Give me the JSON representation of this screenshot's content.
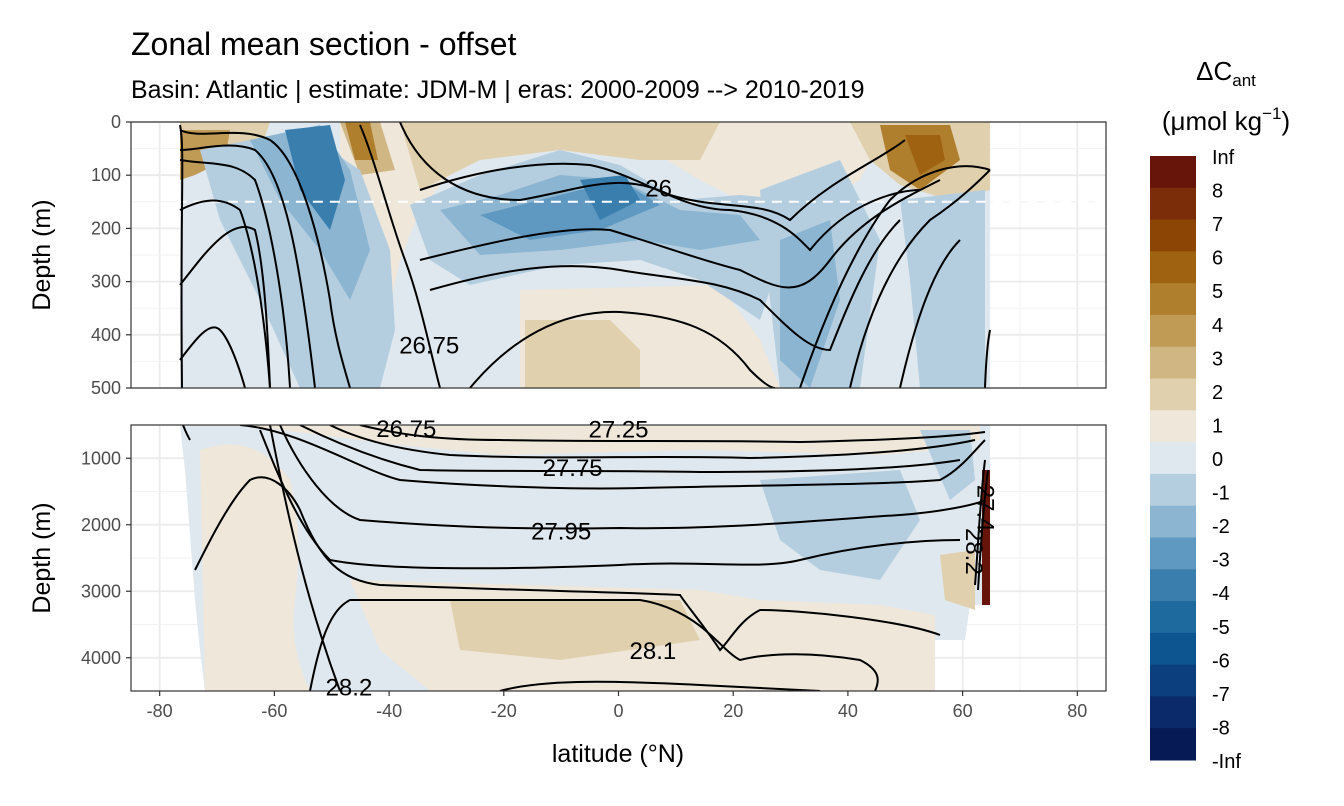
{
  "chart_data": {
    "type": "contour",
    "title": "Zonal mean section - offset",
    "subtitle": "Basin: Atlantic | estimate: JDM-M | eras: 2000-2009 --> 2010-2019",
    "xlabel": "latitude (°N)",
    "ylabel_top": "Depth (m)",
    "ylabel_bottom": "Depth (m)",
    "xlim": [
      -85,
      85
    ],
    "x_ticks": [
      -80,
      -60,
      -40,
      -20,
      0,
      20,
      40,
      60,
      80
    ],
    "x_tick_labels": [
      "-80",
      "-60",
      "-40",
      "-20",
      "0",
      "20",
      "40",
      "60",
      "80"
    ],
    "top_panel": {
      "ylim": [
        0,
        500
      ],
      "y_ticks": [
        0,
        100,
        200,
        300,
        400,
        500
      ],
      "y_tick_labels": [
        "0",
        "100",
        "200",
        "300",
        "400",
        "500"
      ],
      "dashed_line_depth": 150
    },
    "bottom_panel": {
      "ylim": [
        500,
        4500
      ],
      "y_ticks": [
        1000,
        2000,
        3000,
        4000
      ],
      "y_tick_labels": [
        "1000",
        "2000",
        "3000",
        "4000"
      ]
    },
    "contour_labels": [
      {
        "text": "26",
        "lat": 7,
        "depth": 125,
        "panel": "top"
      },
      {
        "text": "26.75",
        "lat": -33,
        "depth": 420,
        "panel": "top"
      },
      {
        "text": "26.75",
        "lat": -37,
        "depth": 560,
        "panel": "bottom"
      },
      {
        "text": "27.25",
        "lat": 0,
        "depth": 570,
        "panel": "bottom"
      },
      {
        "text": "27.75",
        "lat": -8,
        "depth": 1150,
        "panel": "bottom"
      },
      {
        "text": "27.95",
        "lat": -10,
        "depth": 2100,
        "panel": "bottom"
      },
      {
        "text": "28.1",
        "lat": 6,
        "depth": 3900,
        "panel": "bottom"
      },
      {
        "text": "28.2",
        "lat": -47,
        "depth": 4450,
        "panel": "bottom"
      },
      {
        "text": "28.2",
        "lat": 62,
        "depth": 2400,
        "panel": "bottom"
      },
      {
        "text": "27.4",
        "lat": 64,
        "depth": 1750,
        "panel": "bottom"
      }
    ],
    "legend": {
      "title_main": "ΔC",
      "title_sub": "ant",
      "unit_open": "(μmol kg",
      "unit_sup": "−1",
      "unit_close": ")",
      "breaks": [
        "Inf",
        "8",
        "7",
        "6",
        "5",
        "4",
        "3",
        "2",
        "1",
        "0",
        "-1",
        "-2",
        "-3",
        "-4",
        "-5",
        "-6",
        "-7",
        "-8",
        "-Inf"
      ],
      "colors": [
        "#67150a",
        "#7a2d08",
        "#8c4505",
        "#9e6210",
        "#b07f2e",
        "#c09b55",
        "#cfb683",
        "#e0d0ae",
        "#eee7da",
        "#dfe8ee",
        "#b4cee0",
        "#8cb5d1",
        "#5f98c0",
        "#3a7eae",
        "#1e6a9e",
        "#0d5590",
        "#0b3f7d",
        "#0a2a69",
        "#061a55"
      ]
    }
  }
}
